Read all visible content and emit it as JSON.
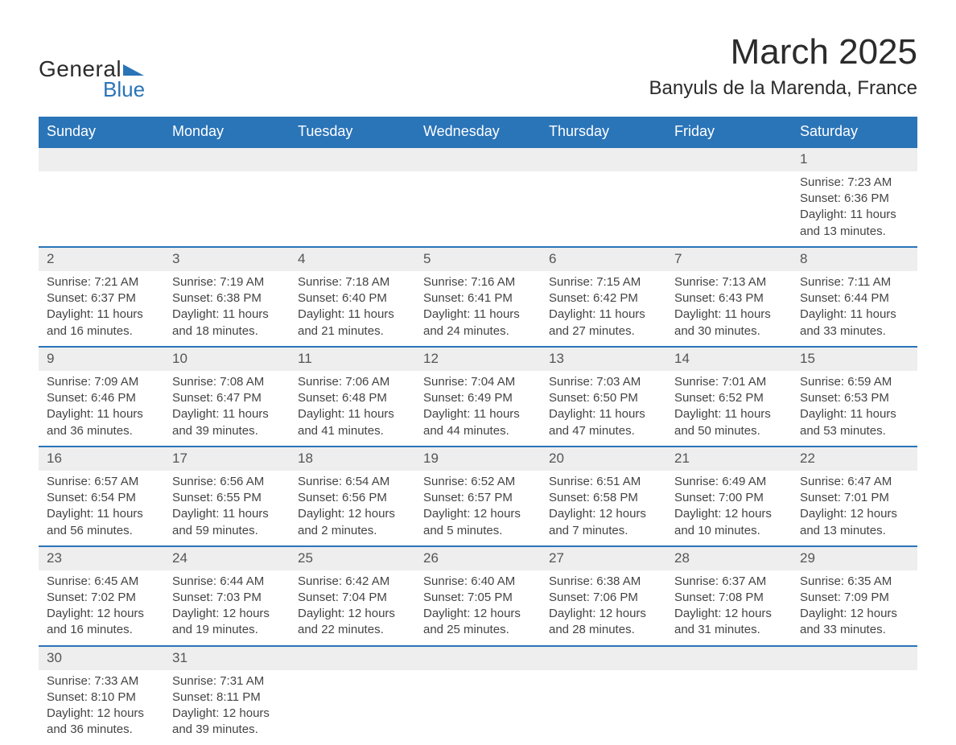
{
  "logo": {
    "word1": "General",
    "word2": "Blue"
  },
  "title": "March 2025",
  "location": "Banyuls de la Marenda, France",
  "colors": {
    "header_bg": "#2a74b8",
    "header_fg": "#ffffff",
    "daynum_bg": "#eeeeee",
    "row_border": "#2a74b8",
    "text": "#444444",
    "title_text": "#2b2b2b"
  },
  "typography": {
    "title_fontsize": 44,
    "location_fontsize": 24,
    "header_fontsize": 18,
    "cell_fontsize": 15
  },
  "weekdays": [
    "Sunday",
    "Monday",
    "Tuesday",
    "Wednesday",
    "Thursday",
    "Friday",
    "Saturday"
  ],
  "weeks": [
    [
      null,
      null,
      null,
      null,
      null,
      null,
      {
        "n": "1",
        "sr": "Sunrise: 7:23 AM",
        "ss": "Sunset: 6:36 PM",
        "d1": "Daylight: 11 hours",
        "d2": "and 13 minutes."
      }
    ],
    [
      {
        "n": "2",
        "sr": "Sunrise: 7:21 AM",
        "ss": "Sunset: 6:37 PM",
        "d1": "Daylight: 11 hours",
        "d2": "and 16 minutes."
      },
      {
        "n": "3",
        "sr": "Sunrise: 7:19 AM",
        "ss": "Sunset: 6:38 PM",
        "d1": "Daylight: 11 hours",
        "d2": "and 18 minutes."
      },
      {
        "n": "4",
        "sr": "Sunrise: 7:18 AM",
        "ss": "Sunset: 6:40 PM",
        "d1": "Daylight: 11 hours",
        "d2": "and 21 minutes."
      },
      {
        "n": "5",
        "sr": "Sunrise: 7:16 AM",
        "ss": "Sunset: 6:41 PM",
        "d1": "Daylight: 11 hours",
        "d2": "and 24 minutes."
      },
      {
        "n": "6",
        "sr": "Sunrise: 7:15 AM",
        "ss": "Sunset: 6:42 PM",
        "d1": "Daylight: 11 hours",
        "d2": "and 27 minutes."
      },
      {
        "n": "7",
        "sr": "Sunrise: 7:13 AM",
        "ss": "Sunset: 6:43 PM",
        "d1": "Daylight: 11 hours",
        "d2": "and 30 minutes."
      },
      {
        "n": "8",
        "sr": "Sunrise: 7:11 AM",
        "ss": "Sunset: 6:44 PM",
        "d1": "Daylight: 11 hours",
        "d2": "and 33 minutes."
      }
    ],
    [
      {
        "n": "9",
        "sr": "Sunrise: 7:09 AM",
        "ss": "Sunset: 6:46 PM",
        "d1": "Daylight: 11 hours",
        "d2": "and 36 minutes."
      },
      {
        "n": "10",
        "sr": "Sunrise: 7:08 AM",
        "ss": "Sunset: 6:47 PM",
        "d1": "Daylight: 11 hours",
        "d2": "and 39 minutes."
      },
      {
        "n": "11",
        "sr": "Sunrise: 7:06 AM",
        "ss": "Sunset: 6:48 PM",
        "d1": "Daylight: 11 hours",
        "d2": "and 41 minutes."
      },
      {
        "n": "12",
        "sr": "Sunrise: 7:04 AM",
        "ss": "Sunset: 6:49 PM",
        "d1": "Daylight: 11 hours",
        "d2": "and 44 minutes."
      },
      {
        "n": "13",
        "sr": "Sunrise: 7:03 AM",
        "ss": "Sunset: 6:50 PM",
        "d1": "Daylight: 11 hours",
        "d2": "and 47 minutes."
      },
      {
        "n": "14",
        "sr": "Sunrise: 7:01 AM",
        "ss": "Sunset: 6:52 PM",
        "d1": "Daylight: 11 hours",
        "d2": "and 50 minutes."
      },
      {
        "n": "15",
        "sr": "Sunrise: 6:59 AM",
        "ss": "Sunset: 6:53 PM",
        "d1": "Daylight: 11 hours",
        "d2": "and 53 minutes."
      }
    ],
    [
      {
        "n": "16",
        "sr": "Sunrise: 6:57 AM",
        "ss": "Sunset: 6:54 PM",
        "d1": "Daylight: 11 hours",
        "d2": "and 56 minutes."
      },
      {
        "n": "17",
        "sr": "Sunrise: 6:56 AM",
        "ss": "Sunset: 6:55 PM",
        "d1": "Daylight: 11 hours",
        "d2": "and 59 minutes."
      },
      {
        "n": "18",
        "sr": "Sunrise: 6:54 AM",
        "ss": "Sunset: 6:56 PM",
        "d1": "Daylight: 12 hours",
        "d2": "and 2 minutes."
      },
      {
        "n": "19",
        "sr": "Sunrise: 6:52 AM",
        "ss": "Sunset: 6:57 PM",
        "d1": "Daylight: 12 hours",
        "d2": "and 5 minutes."
      },
      {
        "n": "20",
        "sr": "Sunrise: 6:51 AM",
        "ss": "Sunset: 6:58 PM",
        "d1": "Daylight: 12 hours",
        "d2": "and 7 minutes."
      },
      {
        "n": "21",
        "sr": "Sunrise: 6:49 AM",
        "ss": "Sunset: 7:00 PM",
        "d1": "Daylight: 12 hours",
        "d2": "and 10 minutes."
      },
      {
        "n": "22",
        "sr": "Sunrise: 6:47 AM",
        "ss": "Sunset: 7:01 PM",
        "d1": "Daylight: 12 hours",
        "d2": "and 13 minutes."
      }
    ],
    [
      {
        "n": "23",
        "sr": "Sunrise: 6:45 AM",
        "ss": "Sunset: 7:02 PM",
        "d1": "Daylight: 12 hours",
        "d2": "and 16 minutes."
      },
      {
        "n": "24",
        "sr": "Sunrise: 6:44 AM",
        "ss": "Sunset: 7:03 PM",
        "d1": "Daylight: 12 hours",
        "d2": "and 19 minutes."
      },
      {
        "n": "25",
        "sr": "Sunrise: 6:42 AM",
        "ss": "Sunset: 7:04 PM",
        "d1": "Daylight: 12 hours",
        "d2": "and 22 minutes."
      },
      {
        "n": "26",
        "sr": "Sunrise: 6:40 AM",
        "ss": "Sunset: 7:05 PM",
        "d1": "Daylight: 12 hours",
        "d2": "and 25 minutes."
      },
      {
        "n": "27",
        "sr": "Sunrise: 6:38 AM",
        "ss": "Sunset: 7:06 PM",
        "d1": "Daylight: 12 hours",
        "d2": "and 28 minutes."
      },
      {
        "n": "28",
        "sr": "Sunrise: 6:37 AM",
        "ss": "Sunset: 7:08 PM",
        "d1": "Daylight: 12 hours",
        "d2": "and 31 minutes."
      },
      {
        "n": "29",
        "sr": "Sunrise: 6:35 AM",
        "ss": "Sunset: 7:09 PM",
        "d1": "Daylight: 12 hours",
        "d2": "and 33 minutes."
      }
    ],
    [
      {
        "n": "30",
        "sr": "Sunrise: 7:33 AM",
        "ss": "Sunset: 8:10 PM",
        "d1": "Daylight: 12 hours",
        "d2": "and 36 minutes."
      },
      {
        "n": "31",
        "sr": "Sunrise: 7:31 AM",
        "ss": "Sunset: 8:11 PM",
        "d1": "Daylight: 12 hours",
        "d2": "and 39 minutes."
      },
      null,
      null,
      null,
      null,
      null
    ]
  ]
}
